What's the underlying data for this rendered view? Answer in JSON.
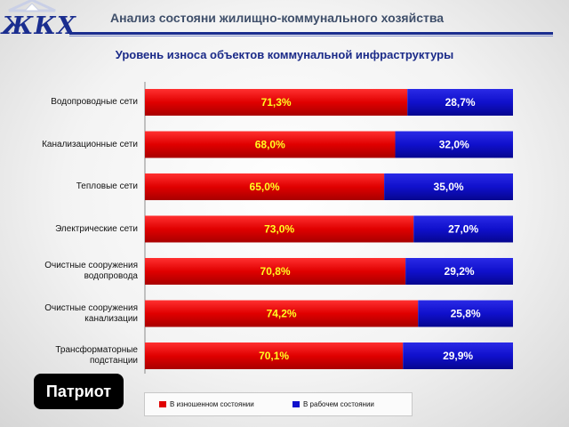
{
  "logo": {
    "text": "ЖКХ"
  },
  "header": {
    "title": "Анализ  состояни жилищно-коммунального хозяйства"
  },
  "badge": {
    "text": "Патриот"
  },
  "colors": {
    "worn": "#e00000",
    "working": "#1010cc",
    "value_worn": "#ffff22",
    "value_working": "#ffffff"
  },
  "chart_data": {
    "type": "bar",
    "orientation": "horizontal",
    "stacked": true,
    "title": "Уровень износа  объектов коммунальной инфраструктуры",
    "categories": [
      [
        "Водопроводные сети"
      ],
      [
        "Канализационные сети"
      ],
      [
        "Тепловые сети"
      ],
      [
        "Электрические сети"
      ],
      [
        "Очистные сооружения",
        "водопровода"
      ],
      [
        "Очистные сооружения",
        "канализации"
      ],
      [
        "Трансформаторные",
        "подстанции"
      ]
    ],
    "series": [
      {
        "name": "В изношенном состоянии",
        "values": [
          71.3,
          68.0,
          65.0,
          73.0,
          70.8,
          74.2,
          70.1
        ],
        "labels": [
          "71,3%",
          "68,0%",
          "65,0%",
          "73,0%",
          "70,8%",
          "74,2%",
          "70,1%"
        ]
      },
      {
        "name": "В рабочем состоянии",
        "values": [
          28.7,
          32.0,
          35.0,
          27.0,
          29.2,
          25.8,
          29.9
        ],
        "labels": [
          "28,7%",
          "32,0%",
          "35,0%",
          "27,0%",
          "29,2%",
          "25,8%",
          "29,9%"
        ]
      }
    ],
    "xlim": [
      0,
      100
    ],
    "legend_position": "bottom"
  }
}
